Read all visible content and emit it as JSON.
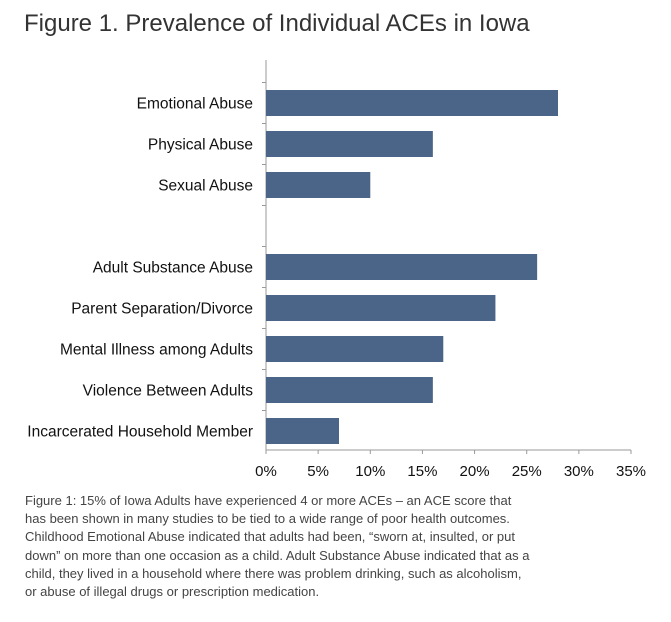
{
  "figure_title": "Figure 1. Prevalence of Individual ACEs in Iowa",
  "colors": {
    "bar": "#4a6587",
    "axis": "#999999",
    "text": "#111111"
  },
  "chart_data": {
    "type": "bar",
    "orientation": "horizontal",
    "title": "Figure 1. Prevalence of Individual ACEs in Iowa",
    "xlabel": "",
    "ylabel": "",
    "xlim": [
      0,
      35
    ],
    "x_ticks": [
      "0%",
      "5%",
      "10%",
      "15%",
      "20%",
      "25%",
      "30%",
      "35%"
    ],
    "grid": false,
    "legend": "none",
    "categories": [
      "Emotional Abuse",
      "Physical Abuse",
      "Sexual Abuse",
      "",
      "Adult Substance Abuse",
      "Parent Separation/Divorce",
      "Mental Illness among Adults",
      "Violence Between Adults",
      "Incarcerated Household Member"
    ],
    "values": [
      28,
      16,
      10,
      null,
      26,
      22,
      17,
      16,
      7
    ]
  },
  "caption": "Figure 1: 15% of Iowa Adults have experienced 4 or more ACEs – an ACE score that\nhas been shown in many studies to be tied to a wide range of poor health outcomes.\nChildhood Emotional Abuse indicated that adults had been, “sworn at, insulted, or put\ndown” on more than one occasion as a child. Adult Substance Abuse indicated that as a\nchild, they lived in a household where there was problem drinking, such as alcoholism,\nor abuse of illegal drugs or prescription medication."
}
